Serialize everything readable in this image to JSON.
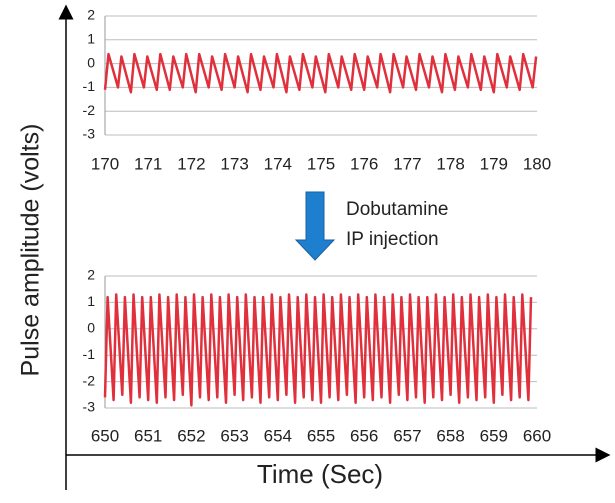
{
  "figure": {
    "ylabel": "Pulse amplitude (volts)",
    "xlabel": "Time (Sec)",
    "annotations": [
      "Dobutamine",
      "IP injection"
    ],
    "arrow_color": "#1f7fcf"
  },
  "chart_data": [
    {
      "type": "line",
      "xlim": [
        170,
        180
      ],
      "ylim": [
        -3,
        2
      ],
      "xticks": [
        170,
        171,
        172,
        173,
        174,
        175,
        176,
        177,
        178,
        179,
        180
      ],
      "yticks": [
        -3,
        -2,
        -1,
        0,
        1,
        2
      ],
      "grid": true,
      "series": [
        {
          "color": "#e0303c",
          "x": [
            170.0,
            170.08,
            170.3,
            170.38,
            170.6,
            170.68,
            170.9,
            170.98,
            171.2,
            171.28,
            171.5,
            171.58,
            171.8,
            171.88,
            172.1,
            172.18,
            172.4,
            172.48,
            172.7,
            172.78,
            173.0,
            173.08,
            173.3,
            173.38,
            173.6,
            173.68,
            173.9,
            173.98,
            174.2,
            174.28,
            174.5,
            174.58,
            174.8,
            174.88,
            175.1,
            175.18,
            175.4,
            175.48,
            175.7,
            175.78,
            176.0,
            176.08,
            176.3,
            176.38,
            176.6,
            176.68,
            176.9,
            176.98,
            177.2,
            177.28,
            177.5,
            177.58,
            177.8,
            177.88,
            178.1,
            178.18,
            178.4,
            178.48,
            178.7,
            178.78,
            179.0,
            179.08,
            179.3,
            179.38,
            179.6,
            179.68,
            179.9,
            179.98
          ],
          "values": [
            -1.1,
            0.4,
            -1.0,
            0.3,
            -1.2,
            0.4,
            -1.0,
            0.3,
            -1.1,
            0.4,
            -1.1,
            0.3,
            -1.0,
            0.4,
            -1.2,
            0.4,
            -1.0,
            0.3,
            -1.1,
            0.4,
            -1.0,
            0.3,
            -1.2,
            0.4,
            -1.1,
            0.3,
            -1.0,
            0.4,
            -1.2,
            0.3,
            -1.1,
            0.4,
            -1.0,
            0.3,
            -1.2,
            0.4,
            -1.0,
            0.3,
            -1.1,
            0.4,
            -1.1,
            0.3,
            -1.0,
            0.4,
            -1.2,
            0.4,
            -1.0,
            0.3,
            -1.1,
            0.4,
            -1.0,
            0.3,
            -1.2,
            0.4,
            -1.1,
            0.3,
            -1.0,
            0.4,
            -1.1,
            0.3,
            -1.2,
            0.4,
            -1.0,
            0.3,
            -1.1,
            0.4,
            -1.0,
            0.3
          ]
        }
      ]
    },
    {
      "type": "line",
      "xlim": [
        650,
        660
      ],
      "ylim": [
        -3,
        2
      ],
      "xticks": [
        650,
        651,
        652,
        653,
        654,
        655,
        656,
        657,
        658,
        659,
        660
      ],
      "yticks": [
        -3,
        -2,
        -1,
        0,
        1,
        2
      ],
      "grid": true,
      "series": [
        {
          "color": "#e0303c",
          "x": [
            650.0,
            650.06,
            650.2,
            650.26,
            650.4,
            650.46,
            650.6,
            650.66,
            650.8,
            650.86,
            651.0,
            651.06,
            651.2,
            651.26,
            651.4,
            651.46,
            651.6,
            651.66,
            651.8,
            651.86,
            652.0,
            652.06,
            652.2,
            652.26,
            652.4,
            652.46,
            652.6,
            652.66,
            652.8,
            652.86,
            653.0,
            653.06,
            653.2,
            653.26,
            653.4,
            653.46,
            653.6,
            653.66,
            653.8,
            653.86,
            654.0,
            654.06,
            654.2,
            654.26,
            654.4,
            654.46,
            654.6,
            654.66,
            654.8,
            654.86,
            655.0,
            655.06,
            655.2,
            655.26,
            655.4,
            655.46,
            655.6,
            655.66,
            655.8,
            655.86,
            656.0,
            656.06,
            656.2,
            656.26,
            656.4,
            656.46,
            656.6,
            656.66,
            656.8,
            656.86,
            657.0,
            657.06,
            657.2,
            657.26,
            657.4,
            657.46,
            657.6,
            657.66,
            657.8,
            657.86,
            658.0,
            658.06,
            658.2,
            658.26,
            658.4,
            658.46,
            658.6,
            658.66,
            658.8,
            658.86,
            659.0,
            659.06,
            659.2,
            659.26,
            659.4,
            659.46,
            659.6,
            659.66,
            659.8,
            659.86
          ],
          "values": [
            -2.6,
            1.2,
            -2.7,
            1.3,
            -2.5,
            1.2,
            -2.8,
            1.3,
            -2.6,
            1.2,
            -2.7,
            1.2,
            -2.8,
            1.3,
            -2.6,
            1.2,
            -2.7,
            1.3,
            -2.5,
            1.2,
            -2.9,
            1.3,
            -2.6,
            1.2,
            -2.7,
            1.3,
            -2.6,
            1.2,
            -2.8,
            1.3,
            -2.5,
            1.2,
            -2.7,
            1.3,
            -2.6,
            1.2,
            -2.8,
            1.2,
            -2.6,
            1.3,
            -2.7,
            1.2,
            -2.5,
            1.3,
            -2.8,
            1.2,
            -2.6,
            1.3,
            -2.7,
            1.2,
            -2.8,
            1.3,
            -2.6,
            1.2,
            -2.7,
            1.3,
            -2.5,
            1.2,
            -2.8,
            1.3,
            -2.6,
            1.2,
            -2.7,
            1.3,
            -2.6,
            1.2,
            -2.8,
            1.3,
            -2.5,
            1.2,
            -2.7,
            1.3,
            -2.6,
            1.2,
            -2.8,
            1.2,
            -2.6,
            1.3,
            -2.7,
            1.2,
            -2.5,
            1.3,
            -2.8,
            1.2,
            -2.6,
            1.3,
            -2.7,
            1.2,
            -2.6,
            1.3,
            -2.8,
            1.2,
            -2.5,
            1.3,
            -2.7,
            1.2,
            -2.6,
            1.3,
            -2.7,
            1.2
          ]
        }
      ]
    }
  ]
}
